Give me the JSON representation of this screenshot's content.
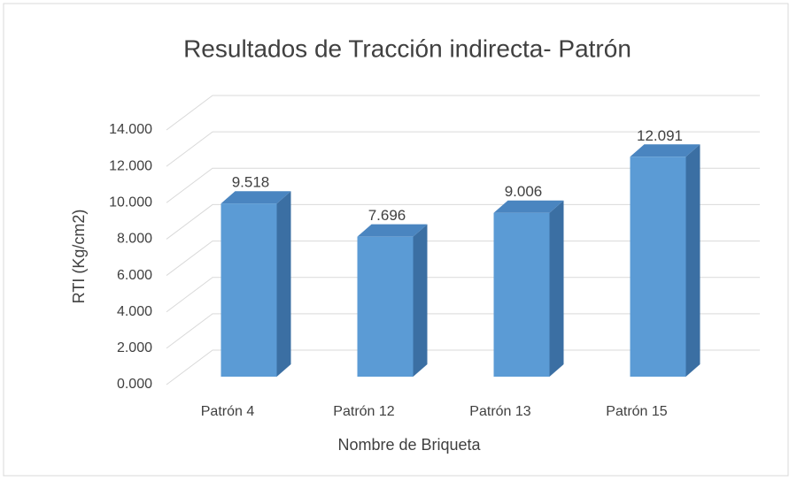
{
  "chart_data": {
    "type": "bar3d",
    "title": "Resultados de Tracción indirecta- Patrón",
    "x_label": "Nombre de Briqueta",
    "y_label": "RTI (Kg/cm2)",
    "categories": [
      "Patrón 4",
      "Patrón 12",
      "Patrón 13",
      "Patrón 15"
    ],
    "values": [
      9.518,
      7.696,
      9.006,
      12.091
    ],
    "color": "#5b9bd5",
    "ylim": [
      0,
      14
    ],
    "yticks": [
      {
        "value": 0,
        "label": "0.000"
      },
      {
        "value": 2,
        "label": "2.000"
      },
      {
        "value": 4,
        "label": "4.000"
      },
      {
        "value": 6,
        "label": "6.000"
      },
      {
        "value": 8,
        "label": "8.000"
      },
      {
        "value": 10,
        "label": "10.000"
      },
      {
        "value": 12,
        "label": "12.000"
      },
      {
        "value": 14,
        "label": "14.000"
      }
    ],
    "grid": true
  }
}
